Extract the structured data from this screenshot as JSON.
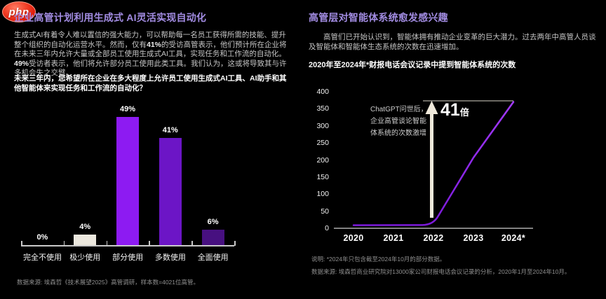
{
  "logo": {
    "text": "php"
  },
  "colors": {
    "background": "#000000",
    "title_purple": "#A28CE2",
    "body_gray": "#C6C6C6",
    "source_gray": "#8F8F8F",
    "axis_gray": "#C9C9C9",
    "bar_bright_purple": "#8D1BF2",
    "bar_mid_purple": "#6C15C6",
    "bar_dark_purple": "#471080",
    "bar_cream": "#ECE8DE",
    "line_purple": "#9327F5",
    "arrow_cream": "#EFE9DB"
  },
  "left": {
    "title": "企业高管计划利用生成式 AI灵活实现自动化",
    "body_segments": [
      {
        "t": "生成式AI有着令人难以置信的强大能力，可以帮助每一名员工获得所需的技能、提升整个组织的自动化运营水平。然而，仅有",
        "b": false
      },
      {
        "t": "41%",
        "b": true
      },
      {
        "t": "的受访高管表示，他们预计所在企业将在未来三年内允许大量或全部员工使用生成式AI工具，实现任务和工作流的自动化。",
        "b": false
      },
      {
        "t": "49%",
        "b": true
      },
      {
        "t": "受访者表示，他们将允许部分员工使用此类工具。我们认为，这或将导致其与许多机会失之交臂。",
        "b": false
      }
    ],
    "source": "数据来源: 埃森哲《技术展望2025》高管调研，样本数=4021位高管。"
  },
  "right": {
    "title": "高管层对智能体系统愈发感兴趣",
    "body": "高管们已开始认识到，智能体拥有推动企业变革的巨大潜力。过去两年中高管人员谈及智能体和智能体生态系统的次数在迅速增加。",
    "chart_title": "2020年至2024年*财报电话会议记录中提到智能体系统的次数",
    "note": "说明: *2024年只包含截至2024年10月的部分数据。",
    "source": "数据来源: 埃森哲商业研究院对13000家公司财报电话会议记录的分析，2020年1月至2024年10月。"
  },
  "chart_data": [
    {
      "type": "bar",
      "title": "未来三年内，您希望所在企业在多大程度上允许员工使用生成式AI工具、AI助手和其他智能体来实现任务和工作流的自动化？",
      "categories": [
        "完全不使用",
        "极少使用",
        "部分使用",
        "多数使用",
        "全面使用"
      ],
      "values": [
        0,
        4,
        49,
        41,
        6
      ],
      "value_labels": [
        "0%",
        "4%",
        "49%",
        "41%",
        "6%"
      ],
      "bar_colors": [
        "#ECE8DE",
        "#ECE8DE",
        "#8D1BF2",
        "#6C15C6",
        "#471080"
      ],
      "unit": "%",
      "ylim": [
        0,
        55
      ],
      "grid": false,
      "legend": "none"
    },
    {
      "type": "line",
      "title": "2020年至2024年*财报电话会议记录中提到智能体系统的次数",
      "x": [
        "2020",
        "2021",
        "2022",
        "2023",
        "2024*"
      ],
      "values": [
        9,
        9,
        10,
        207,
        370
      ],
      "ylim": [
        0,
        400
      ],
      "yticks": [
        0,
        50,
        100,
        150,
        200,
        250,
        300,
        350,
        400
      ],
      "line_color": "#9327F5",
      "annotation_lines": [
        "ChatGPT问世后，",
        "企业高管谈论智能",
        "体系统的次数激增"
      ],
      "callout": {
        "value": "41",
        "unit": "倍"
      },
      "grid": false,
      "legend": "none"
    }
  ]
}
